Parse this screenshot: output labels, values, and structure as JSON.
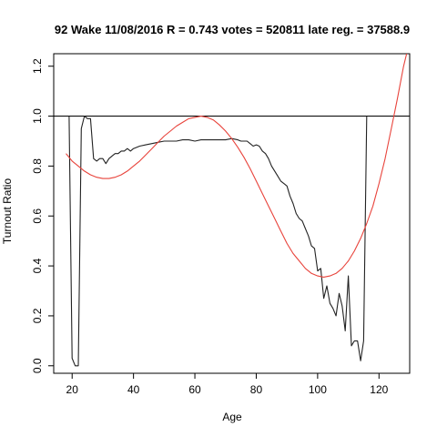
{
  "chart_data": {
    "type": "line",
    "title": "92 Wake 11/08/2016 R = 0.743 votes = 520811 late reg. = 37588.9",
    "xlabel": "Age",
    "ylabel": "Turnout Ratio",
    "xlim": [
      14,
      130
    ],
    "ylim": [
      -0.03,
      1.25
    ],
    "x_ticks": [
      20,
      40,
      60,
      80,
      100,
      120
    ],
    "y_ticks": [
      0.0,
      0.2,
      0.4,
      0.6,
      0.8,
      1.0,
      1.2
    ],
    "x_tick_labels": [
      "20",
      "40",
      "60",
      "80",
      "100",
      "120"
    ],
    "y_tick_labels": [
      "0.0",
      "0.2",
      "0.4",
      "0.6",
      "0.8",
      "1.0",
      "1.2"
    ],
    "reference_line": {
      "y": 1.0,
      "color": "#000000"
    },
    "grid": false,
    "series": [
      {
        "color": "#222222",
        "x": [
          19,
          20,
          21,
          22,
          23,
          24,
          25,
          26,
          27,
          28,
          29,
          30,
          31,
          32,
          33,
          34,
          35,
          36,
          37,
          38,
          39,
          40,
          42,
          44,
          46,
          48,
          50,
          52,
          54,
          56,
          58,
          60,
          62,
          64,
          66,
          68,
          70,
          72,
          74,
          75,
          76,
          77,
          78,
          79,
          80,
          81,
          82,
          83,
          84,
          85,
          86,
          87,
          88,
          89,
          90,
          91,
          92,
          93,
          94,
          95,
          96,
          97,
          98,
          99,
          100,
          101,
          102,
          103,
          104,
          105,
          106,
          107,
          108,
          109,
          110,
          111,
          112,
          113,
          114,
          115,
          116
        ],
        "y": [
          1.0,
          0.03,
          0.0,
          0.0,
          0.95,
          1.0,
          0.99,
          0.99,
          0.83,
          0.82,
          0.83,
          0.83,
          0.81,
          0.83,
          0.84,
          0.85,
          0.85,
          0.86,
          0.86,
          0.87,
          0.86,
          0.87,
          0.88,
          0.885,
          0.89,
          0.895,
          0.9,
          0.9,
          0.9,
          0.905,
          0.905,
          0.9,
          0.905,
          0.905,
          0.905,
          0.905,
          0.905,
          0.91,
          0.905,
          0.9,
          0.9,
          0.9,
          0.89,
          0.88,
          0.885,
          0.88,
          0.86,
          0.85,
          0.83,
          0.8,
          0.78,
          0.76,
          0.74,
          0.73,
          0.72,
          0.68,
          0.65,
          0.61,
          0.59,
          0.58,
          0.55,
          0.52,
          0.48,
          0.47,
          0.38,
          0.39,
          0.27,
          0.32,
          0.25,
          0.23,
          0.2,
          0.29,
          0.24,
          0.14,
          0.36,
          0.08,
          0.1,
          0.1,
          0.02,
          0.1,
          1.0
        ]
      },
      {
        "color": "#e8433b",
        "x": [
          18,
          20,
          22,
          24,
          26,
          28,
          30,
          32,
          34,
          36,
          38,
          40,
          42,
          44,
          46,
          48,
          50,
          52,
          54,
          56,
          58,
          60,
          62,
          64,
          66,
          68,
          70,
          72,
          74,
          76,
          78,
          80,
          82,
          84,
          86,
          88,
          90,
          92,
          94,
          96,
          98,
          100,
          102,
          104,
          106,
          108,
          110,
          112,
          114,
          116,
          118,
          120,
          122,
          124,
          126,
          128,
          130
        ],
        "y": [
          0.85,
          0.82,
          0.8,
          0.78,
          0.765,
          0.755,
          0.75,
          0.75,
          0.755,
          0.765,
          0.78,
          0.8,
          0.82,
          0.845,
          0.87,
          0.895,
          0.92,
          0.94,
          0.96,
          0.975,
          0.99,
          0.995,
          1.0,
          0.995,
          0.985,
          0.965,
          0.94,
          0.91,
          0.875,
          0.835,
          0.79,
          0.74,
          0.69,
          0.64,
          0.59,
          0.54,
          0.49,
          0.45,
          0.42,
          0.39,
          0.37,
          0.36,
          0.355,
          0.36,
          0.37,
          0.39,
          0.42,
          0.46,
          0.51,
          0.57,
          0.64,
          0.73,
          0.83,
          0.95,
          1.07,
          1.2,
          1.3
        ]
      }
    ]
  }
}
